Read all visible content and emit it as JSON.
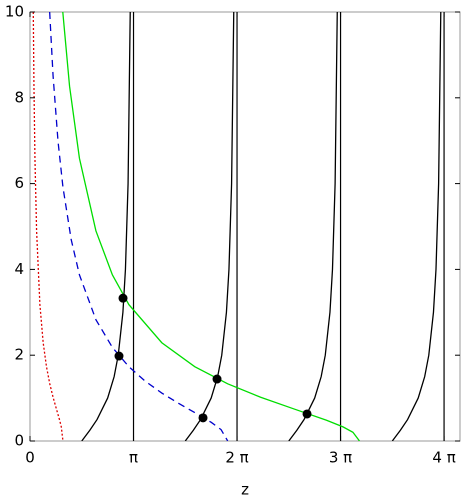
{
  "chart_data": {
    "type": "line",
    "xlabel": "z",
    "xlim": [
      0,
      13.05
    ],
    "ylim": [
      0,
      10
    ],
    "xticks": [
      0,
      {
        "value": 3.1416,
        "label": "π"
      },
      {
        "value": 6.2832,
        "label": "2 π"
      },
      {
        "value": 9.4248,
        "label": "3 π"
      },
      {
        "value": 12.5664,
        "label": "4 π"
      }
    ],
    "yticks": [
      0,
      2,
      4,
      6,
      8,
      10
    ],
    "vlines": [
      3.1416,
      6.2832,
      9.4248,
      12.5664
    ],
    "vline_color": "#000000",
    "series": [
      {
        "color": "#000000",
        "dash": "none",
        "x": [
          1.5708,
          1.8158,
          2.0344,
          2.3562,
          2.5536,
          2.6779,
          2.8198,
          2.8966,
          2.9764,
          3.0419
        ],
        "values": [
          0,
          0.25,
          0.5,
          1,
          1.5,
          2,
          3,
          4,
          6,
          10
        ]
      },
      {
        "color": "#000000",
        "dash": "none",
        "x": [
          4.7124,
          4.9574,
          5.176,
          5.4978,
          5.6952,
          5.8195,
          5.9614,
          6.0382,
          6.118,
          6.1835
        ],
        "values": [
          0,
          0.25,
          0.5,
          1,
          1.5,
          2,
          3,
          4,
          6,
          10
        ]
      },
      {
        "color": "#000000",
        "dash": "none",
        "x": [
          7.854,
          8.099,
          8.3176,
          8.6394,
          8.8368,
          8.9611,
          9.103,
          9.1798,
          9.2596,
          9.3251
        ],
        "values": [
          0,
          0.25,
          0.5,
          1,
          1.5,
          2,
          3,
          4,
          6,
          10
        ]
      },
      {
        "color": "#000000",
        "dash": "none",
        "x": [
          10.9956,
          11.2406,
          11.4592,
          11.781,
          11.9784,
          12.1027,
          12.2446,
          12.3214,
          12.4012,
          12.4667
        ],
        "values": [
          0,
          0.25,
          0.5,
          1,
          1.5,
          2,
          3,
          4,
          6,
          10
        ]
      },
      {
        "color": "#00dd00",
        "dash": "none",
        "x": [
          0.995,
          1.2,
          1.5,
          2,
          2.5,
          3,
          4,
          5,
          6,
          7,
          8,
          9,
          9.5,
          9.8,
          10
        ],
        "values": [
          10,
          8.273,
          6.591,
          4.899,
          3.873,
          3.18,
          2.291,
          1.732,
          1.333,
          1.02,
          0.75,
          0.484,
          0.329,
          0.203,
          0
        ]
      },
      {
        "color": "#0000cc",
        "dash": "7,5",
        "x": [
          0.597,
          0.7,
          0.85,
          1,
          1.25,
          1.5,
          2,
          2.5,
          3,
          3.5,
          4,
          4.5,
          5,
          5.5,
          5.8,
          6
        ],
        "values": [
          10,
          8.513,
          6.988,
          5.916,
          4.695,
          3.873,
          2.828,
          2.182,
          1.732,
          1.392,
          1.118,
          0.882,
          0.663,
          0.436,
          0.265,
          0
        ]
      },
      {
        "color": "#dd0000",
        "dash": "2,2",
        "x": [
          0.0995,
          0.12,
          0.15,
          0.2,
          0.3,
          0.4,
          0.5,
          0.6,
          0.7,
          0.8,
          0.9,
          0.95,
          1
        ],
        "values": [
          10,
          8.273,
          6.591,
          4.899,
          3.18,
          2.291,
          1.732,
          1.333,
          1.02,
          0.75,
          0.484,
          0.329,
          0
        ]
      }
    ],
    "points": {
      "color": "#000000",
      "x": [
        2.823,
        2.701,
        5.676,
        5.251,
        8.408
      ],
      "values": [
        3.33,
        1.98,
        1.445,
        0.54,
        0.63
      ]
    }
  }
}
